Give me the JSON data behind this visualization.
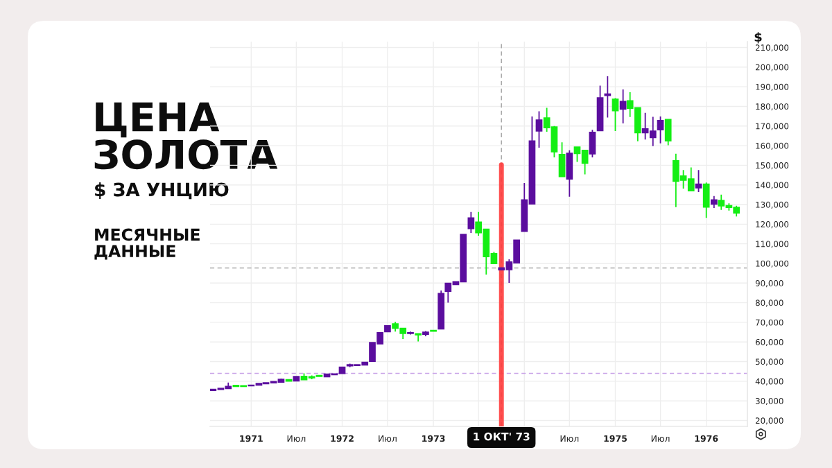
{
  "chart_data": {
    "type": "candlestick",
    "title": "ЦЕНА ЗОЛОТА",
    "subtitle": "$ ЗА УНЦИЮ",
    "ylabel": "$",
    "annotations": [
      "МЕСЯЧНЫЕ ДАННЫЕ"
    ],
    "x": [
      "1970-08",
      "1970-09",
      "1970-10",
      "1970-11",
      "1970-12",
      "1971-01",
      "1971-02",
      "1971-03",
      "1971-04",
      "1971-05",
      "1971-06",
      "1971-07",
      "1971-08",
      "1971-09",
      "1971-10",
      "1971-11",
      "1971-12",
      "1972-01",
      "1972-02",
      "1972-03",
      "1972-04",
      "1972-05",
      "1972-06",
      "1972-07",
      "1972-08",
      "1972-09",
      "1972-10",
      "1972-11",
      "1972-12",
      "1973-01",
      "1973-02",
      "1973-03",
      "1973-04",
      "1973-05",
      "1973-06",
      "1973-07",
      "1973-08",
      "1973-09",
      "1973-10",
      "1973-11",
      "1973-12",
      "1974-01",
      "1974-02",
      "1974-03",
      "1974-04",
      "1974-05",
      "1974-06",
      "1974-07",
      "1974-08",
      "1974-09",
      "1974-10",
      "1974-11",
      "1974-12",
      "1975-01",
      "1975-02",
      "1975-03",
      "1975-04",
      "1975-05",
      "1975-06",
      "1975-07",
      "1975-08",
      "1975-09",
      "1975-10",
      "1975-11",
      "1975-12",
      "1976-01",
      "1976-02",
      "1976-03",
      "1976-04",
      "1976-05"
    ],
    "ohlc": [
      [
        35300,
        35900,
        35200,
        35800
      ],
      [
        35900,
        36500,
        35800,
        36400
      ],
      [
        36300,
        39300,
        36200,
        37300
      ],
      [
        37900,
        38200,
        37100,
        37400
      ],
      [
        37700,
        37800,
        37300,
        37400
      ],
      [
        37700,
        38100,
        37600,
        38000
      ],
      [
        38100,
        38900,
        38000,
        38800
      ],
      [
        38800,
        39300,
        38700,
        39200
      ],
      [
        39200,
        39900,
        39100,
        39800
      ],
      [
        39600,
        41400,
        39500,
        41000
      ],
      [
        40800,
        41000,
        40000,
        40100
      ],
      [
        40200,
        42600,
        40100,
        42400
      ],
      [
        42500,
        44000,
        40700,
        40800
      ],
      [
        42300,
        43000,
        41000,
        41800
      ],
      [
        42900,
        43000,
        42300,
        42500
      ],
      [
        42300,
        43800,
        42200,
        43600
      ],
      [
        43400,
        44000,
        43100,
        43700
      ],
      [
        44000,
        47500,
        43900,
        47100
      ],
      [
        47900,
        49000,
        47200,
        48400
      ],
      [
        48000,
        48500,
        47900,
        48400
      ],
      [
        48300,
        49700,
        48200,
        49600
      ],
      [
        50200,
        59900,
        50000,
        59700
      ],
      [
        59100,
        65000,
        59000,
        64700
      ],
      [
        65300,
        68500,
        65000,
        68200
      ],
      [
        69200,
        70200,
        65300,
        67000
      ],
      [
        66900,
        67200,
        61500,
        64400
      ],
      [
        64400,
        65300,
        63800,
        64700
      ],
      [
        64200,
        64300,
        60300,
        63700
      ],
      [
        63900,
        65600,
        62900,
        65000
      ],
      [
        65900,
        66200,
        65300,
        65500
      ],
      [
        66700,
        86200,
        66500,
        84700
      ],
      [
        85800,
        90200,
        80000,
        89900
      ],
      [
        89300,
        91000,
        89000,
        90700
      ],
      [
        90700,
        115000,
        90500,
        114800
      ],
      [
        117800,
        126200,
        115500,
        123200
      ],
      [
        121000,
        126200,
        114100,
        115700
      ],
      [
        117400,
        117600,
        94300,
        103500
      ],
      [
        105000,
        105900,
        99800,
        100000
      ],
      [
        96800,
        97900,
        96600,
        97700
      ],
      [
        96900,
        102100,
        90100,
        100700
      ],
      [
        100300,
        112000,
        100200,
        111900
      ],
      [
        116400,
        141000,
        116200,
        132300
      ],
      [
        130300,
        174900,
        130100,
        162400
      ],
      [
        167500,
        177500,
        159000,
        173000
      ],
      [
        174100,
        179300,
        167100,
        169200
      ],
      [
        169500,
        170000,
        154000,
        156900
      ],
      [
        155500,
        161700,
        144200,
        144300
      ],
      [
        143000,
        157600,
        134000,
        156100
      ],
      [
        159300,
        159500,
        151700,
        156000
      ],
      [
        157600,
        157800,
        145400,
        151100
      ],
      [
        155800,
        168100,
        154000,
        166800
      ],
      [
        167700,
        190600,
        167500,
        184300
      ],
      [
        185600,
        195300,
        174300,
        186300
      ],
      [
        183600,
        184200,
        167400,
        177800
      ],
      [
        178600,
        188600,
        171300,
        182500
      ],
      [
        182800,
        187200,
        174600,
        179100
      ],
      [
        179300,
        179500,
        162200,
        166600
      ],
      [
        166600,
        176700,
        163100,
        168500
      ],
      [
        164100,
        174700,
        159800,
        167400
      ],
      [
        168100,
        174900,
        161200,
        172800
      ],
      [
        173300,
        173500,
        160200,
        162500
      ],
      [
        152300,
        155900,
        128700,
        141900
      ],
      [
        144500,
        147600,
        138100,
        142400
      ],
      [
        143000,
        148900,
        136900,
        137000
      ],
      [
        138500,
        147600,
        136400,
        140400
      ],
      [
        140400,
        141200,
        123200,
        128700
      ],
      [
        130200,
        134300,
        128200,
        132300
      ],
      [
        132100,
        135000,
        127300,
        129400
      ],
      [
        129400,
        130600,
        126900,
        128600
      ],
      [
        128500,
        129400,
        123900,
        125700
      ]
    ],
    "colors": [
      "#5b0e9e",
      "#5b0e9e",
      "#5b0e9e",
      "#14ee14",
      "#14ee14",
      "#5b0e9e",
      "#5b0e9e",
      "#5b0e9e",
      "#5b0e9e",
      "#5b0e9e",
      "#14ee14",
      "#5b0e9e",
      "#14ee14",
      "#14ee14",
      "#14ee14",
      "#5b0e9e",
      "#5b0e9e",
      "#5b0e9e",
      "#5b0e9e",
      "#5b0e9e",
      "#5b0e9e",
      "#5b0e9e",
      "#5b0e9e",
      "#5b0e9e",
      "#14ee14",
      "#14ee14",
      "#5b0e9e",
      "#14ee14",
      "#5b0e9e",
      "#14ee14",
      "#5b0e9e",
      "#5b0e9e",
      "#5b0e9e",
      "#5b0e9e",
      "#5b0e9e",
      "#14ee14",
      "#14ee14",
      "#14ee14",
      "#5b0e9e",
      "#5b0e9e",
      "#5b0e9e",
      "#5b0e9e",
      "#5b0e9e",
      "#5b0e9e",
      "#14ee14",
      "#14ee14",
      "#14ee14",
      "#5b0e9e",
      "#14ee14",
      "#14ee14",
      "#5b0e9e",
      "#5b0e9e",
      "#5b0e9e",
      "#14ee14",
      "#5b0e9e",
      "#14ee14",
      "#14ee14",
      "#5b0e9e",
      "#5b0e9e",
      "#5b0e9e",
      "#14ee14",
      "#14ee14",
      "#14ee14",
      "#14ee14",
      "#5b0e9e",
      "#14ee14",
      "#5b0e9e",
      "#14ee14",
      "#14ee14",
      "#14ee14"
    ],
    "xlim": [
      "1970-07-20",
      "1976-06-14"
    ],
    "xticks": [
      {
        "value": "1971-01",
        "label": "1971"
      },
      {
        "value": "1971-07",
        "label": "Июл"
      },
      {
        "value": "1972-01",
        "label": "1972"
      },
      {
        "value": "1972-07",
        "label": "Июл"
      },
      {
        "value": "1973-01",
        "label": "1973"
      },
      {
        "value": "1973-07",
        "label": null
      },
      {
        "value": "1974-01",
        "label": null
      },
      {
        "value": "1974-07",
        "label": "Июл"
      },
      {
        "value": "1975-01",
        "label": "1975"
      },
      {
        "value": "1975-07",
        "label": "Июл"
      },
      {
        "value": "1976-01",
        "label": "1976"
      }
    ],
    "ylim": [
      17000,
      213000
    ],
    "yticks": [
      {
        "value": 20000,
        "label": "20,000"
      },
      {
        "value": 30000,
        "label": "30,000"
      },
      {
        "value": 40000,
        "label": "40,000"
      },
      {
        "value": 50000,
        "label": "50,000"
      },
      {
        "value": 60000,
        "label": "60,000"
      },
      {
        "value": 70000,
        "label": "70,000"
      },
      {
        "value": 80000,
        "label": "80,000"
      },
      {
        "value": 90000,
        "label": "90,000"
      },
      {
        "value": 100000,
        "label": "100,000"
      },
      {
        "value": 110000,
        "label": "110,000"
      },
      {
        "value": 120000,
        "label": "120,000"
      },
      {
        "value": 130000,
        "label": "130,000"
      },
      {
        "value": 140000,
        "label": "140,000"
      },
      {
        "value": 150000,
        "label": "150,000"
      },
      {
        "value": 160000,
        "label": "160,000"
      },
      {
        "value": 170000,
        "label": "170,000"
      },
      {
        "value": 180000,
        "label": "180,000"
      },
      {
        "value": 190000,
        "label": "190,000"
      },
      {
        "value": 200000,
        "label": "200,000"
      },
      {
        "value": 210000,
        "label": "210,000"
      }
    ],
    "ref_lines": [
      {
        "axis": "x",
        "value": "1973-10",
        "color": "#a8a8a8",
        "line_style": "dashed"
      },
      {
        "axis": "x",
        "value": "1973-10",
        "label": "1 ОКТ' 73",
        "color": "#ff3b3b",
        "line_style": "solid"
      },
      {
        "axis": "y",
        "value": 97700,
        "color": "#a8a8a8",
        "line_style": "dashed"
      },
      {
        "axis": "y",
        "value": 44000,
        "color": "#c9a3e8",
        "line_style": "dashed"
      }
    ],
    "grid": true
  }
}
